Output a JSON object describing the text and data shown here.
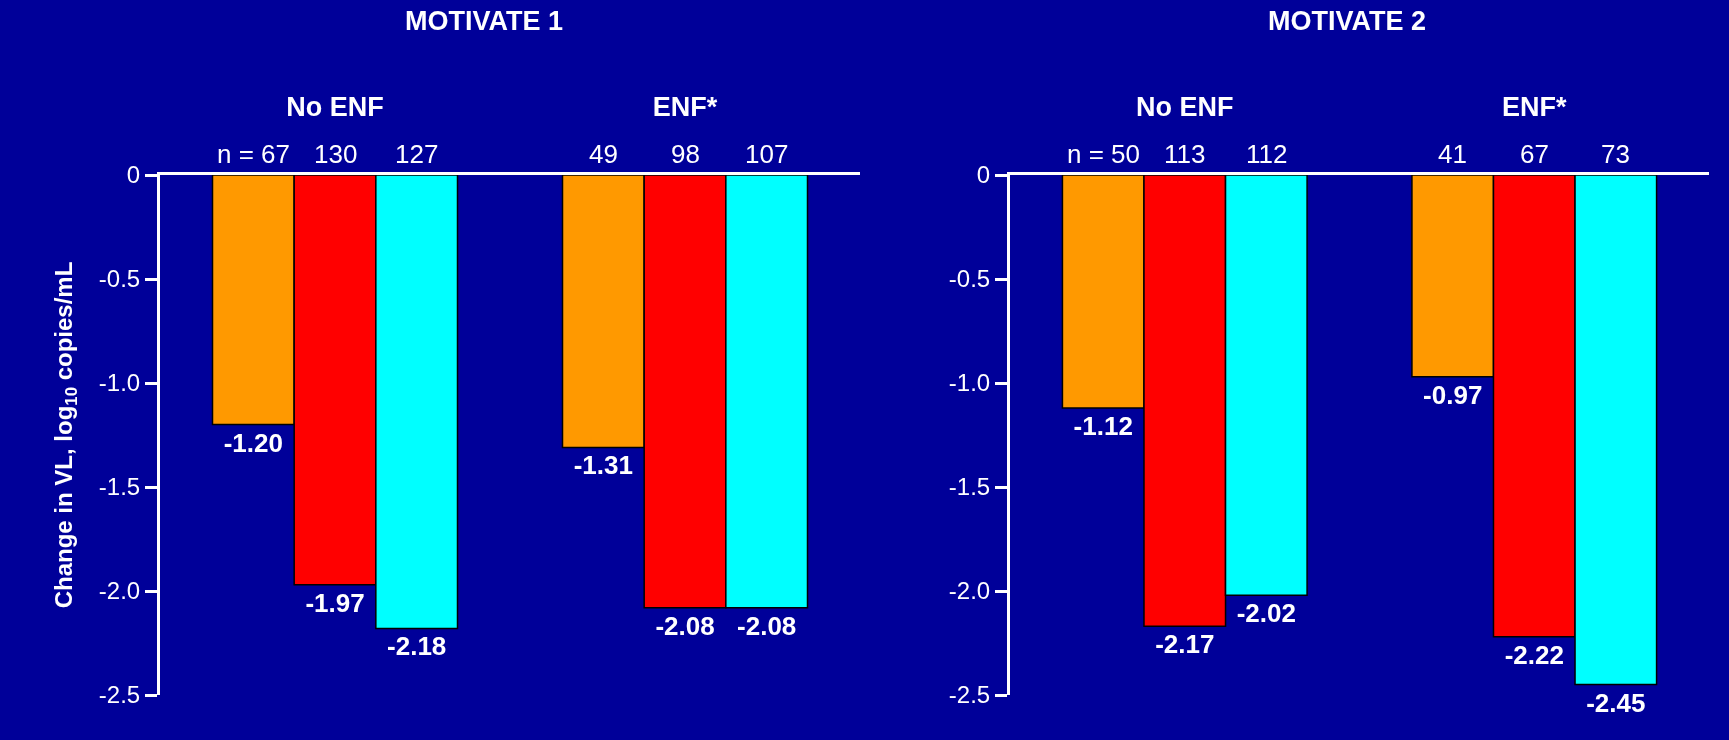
{
  "chart_data": [
    {
      "type": "bar",
      "title": "MOTIVATE 1",
      "ylabel": "Change in VL, log$_{10}$ copies/mL",
      "categories": [
        "No ENF",
        "ENF*"
      ],
      "series": [
        {
          "color": "#ff9900",
          "values": [
            -1.2,
            -1.31
          ],
          "value_labels": [
            "-1.20",
            "-1.31"
          ]
        },
        {
          "color": "#ff0000",
          "values": [
            -1.97,
            -2.08
          ],
          "value_labels": [
            "-1.97",
            "-2.08"
          ]
        },
        {
          "color": "#00ffff",
          "values": [
            -2.18,
            -2.08
          ],
          "value_labels": [
            "-2.18",
            "-2.08"
          ]
        }
      ],
      "ylim": [
        -2.5,
        0
      ],
      "yticks": [
        0,
        {
          "value": -0.5,
          "label": "-0.5"
        },
        {
          "value": -1,
          "label": "-1.0"
        },
        {
          "value": -1.5,
          "label": "-1.5"
        },
        {
          "value": -2,
          "label": "-2.0"
        },
        {
          "value": -2.5,
          "label": "-2.5"
        }
      ],
      "annotations": [
        "n = 67",
        "130",
        "127",
        "49",
        "98",
        "107"
      ],
      "grid": false
    },
    {
      "type": "bar",
      "title": "MOTIVATE 2",
      "categories": [
        "No ENF",
        "ENF*"
      ],
      "series": [
        {
          "color": "#ff9900",
          "values": [
            -1.12,
            -0.97
          ],
          "value_labels": [
            "-1.12",
            "-0.97"
          ]
        },
        {
          "color": "#ff0000",
          "values": [
            -2.17,
            -2.22
          ],
          "value_labels": [
            "-2.17",
            "-2.22"
          ]
        },
        {
          "color": "#00ffff",
          "values": [
            -2.02,
            -2.45
          ],
          "value_labels": [
            "-2.02",
            "-2.45"
          ]
        }
      ],
      "ylim": [
        -2.5,
        0
      ],
      "yticks": [
        0,
        {
          "value": -0.5,
          "label": "-0.5"
        },
        {
          "value": -1,
          "label": "-1.0"
        },
        {
          "value": -1.5,
          "label": "-1.5"
        },
        {
          "value": -2,
          "label": "-2.0"
        },
        {
          "value": -2.5,
          "label": "-2.5"
        }
      ],
      "annotations": [
        "n = 50",
        "113",
        "112",
        "41",
        "67",
        "73"
      ],
      "grid": false
    }
  ]
}
